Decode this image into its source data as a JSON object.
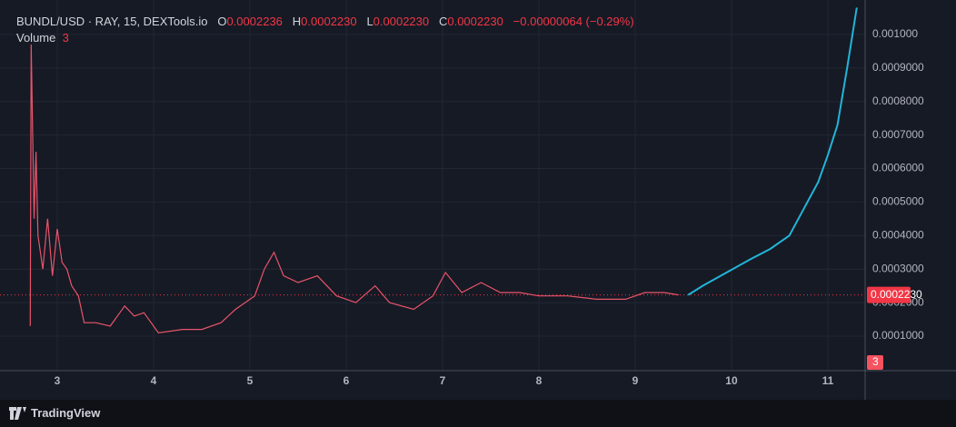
{
  "header": {
    "symbol": "BUNDL/USD · RAY, 15, DEXTools.io",
    "ohlc": [
      {
        "label": "O",
        "value": "0.0002236"
      },
      {
        "label": "H",
        "value": "0.0002230"
      },
      {
        "label": "L",
        "value": "0.0002230"
      },
      {
        "label": "C",
        "value": "0.0002230"
      }
    ],
    "change": "−0.00000064 (−0.29%)",
    "volume_label": "Volume",
    "volume_value": "3"
  },
  "footer": {
    "logo": "TradingView"
  },
  "chart_data": {
    "type": "line",
    "xlim": [
      2.406,
      11.387
    ],
    "xticks": [
      3,
      4,
      5,
      6,
      7,
      8,
      9,
      10,
      11
    ],
    "ylim": [
      -3e-06,
      0.0011027
    ],
    "yticks": [
      {
        "value": 0.0001,
        "label": "0.0001000"
      },
      {
        "value": 0.0002,
        "label": "0.0002000"
      },
      {
        "value": 0.0003,
        "label": "0.0003000"
      },
      {
        "value": 0.0004,
        "label": "0.0004000"
      },
      {
        "value": 0.0005,
        "label": "0.0005000"
      },
      {
        "value": 0.0006,
        "label": "0.0006000"
      },
      {
        "value": 0.0007,
        "label": "0.0007000"
      },
      {
        "value": 0.0008,
        "label": "0.0008000"
      },
      {
        "value": 0.0009,
        "label": "0.0009000"
      },
      {
        "value": 0.001,
        "label": "0.001000"
      }
    ],
    "grid": true,
    "last_price": {
      "value": 0.000223,
      "label": "0.0002230",
      "color": "#f23645"
    },
    "volume_badge": {
      "value": 3,
      "color": "#f7525f"
    },
    "series": [
      {
        "color": "#e8546a",
        "x": [
          2.72,
          2.73,
          2.76,
          2.78,
          2.8,
          2.85,
          2.9,
          2.95,
          3.0,
          3.05,
          3.1,
          3.15,
          3.22,
          3.28,
          3.4,
          3.55,
          3.7,
          3.8,
          3.9,
          4.05,
          4.3,
          4.5,
          4.7,
          4.85,
          4.95,
          5.05,
          5.15,
          5.25,
          5.35,
          5.5,
          5.7,
          5.9,
          6.1,
          6.3,
          6.45,
          6.7,
          6.9,
          7.03,
          7.2,
          7.4,
          7.6,
          7.8,
          8.0,
          8.3,
          8.6,
          8.9,
          9.1,
          9.3,
          9.45
        ],
        "values": [
          0.00013,
          0.00097,
          0.00045,
          0.00065,
          0.0004,
          0.0003,
          0.00045,
          0.00028,
          0.00042,
          0.00032,
          0.0003,
          0.00025,
          0.00022,
          0.00014,
          0.00014,
          0.00013,
          0.00019,
          0.00016,
          0.00017,
          0.00011,
          0.00012,
          0.00012,
          0.00014,
          0.00018,
          0.0002,
          0.00022,
          0.0003,
          0.00035,
          0.00028,
          0.00026,
          0.00028,
          0.00022,
          0.0002,
          0.00025,
          0.0002,
          0.00018,
          0.00022,
          0.00029,
          0.00023,
          0.00026,
          0.00023,
          0.00023,
          0.00022,
          0.00022,
          0.00021,
          0.00021,
          0.00023,
          0.00023,
          0.000223
        ]
      },
      {
        "color": "#22b5d8",
        "x": [
          9.55,
          9.7,
          9.95,
          10.2,
          10.4,
          10.6,
          10.75,
          10.9,
          11.0,
          11.1,
          11.2,
          11.3
        ],
        "values": [
          0.000223,
          0.00025,
          0.00029,
          0.00033,
          0.00036,
          0.0004,
          0.00048,
          0.00056,
          0.00064,
          0.00073,
          0.0009,
          0.00108
        ]
      }
    ]
  }
}
